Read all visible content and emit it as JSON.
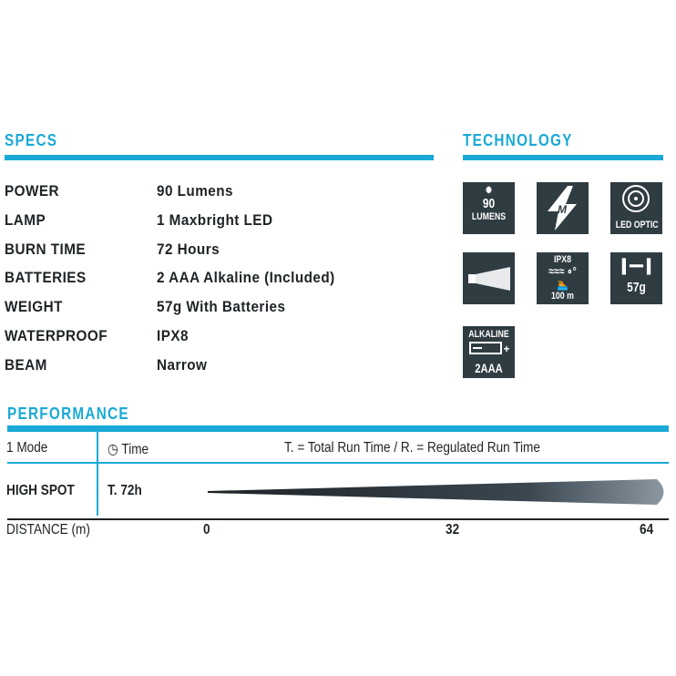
{
  "specs": {
    "heading": "SPECS",
    "rows": [
      {
        "label": "POWER",
        "value": "90 Lumens"
      },
      {
        "label": "LAMP",
        "value": "1 Maxbright LED"
      },
      {
        "label": "BURN TIME",
        "value": "72 Hours"
      },
      {
        "label": "BATTERIES",
        "value": "2 AAA Alkaline (Included)"
      },
      {
        "label": "WEIGHT",
        "value": "57g With Batteries"
      },
      {
        "label": "WATERPROOF",
        "value": "IPX8"
      },
      {
        "label": "BEAM",
        "value": "Narrow"
      }
    ]
  },
  "technology": {
    "heading": "TECHNOLOGY",
    "tiles": [
      {
        "icon": "lumens-icon",
        "top": "90",
        "bottom": "LUMENS"
      },
      {
        "icon": "maxbright-m-icon",
        "top": "M",
        "bottom": ""
      },
      {
        "icon": "led-optic-icon",
        "top": "",
        "bottom": "LED OPTIC"
      },
      {
        "icon": "beam-icon",
        "top": "",
        "bottom": ""
      },
      {
        "icon": "waterproof-diver-icon",
        "top": "IPX8",
        "bottom": "100 m"
      },
      {
        "icon": "weight-icon",
        "top": "",
        "bottom": "57g"
      },
      {
        "icon": "battery-icon",
        "top": "ALKALINE",
        "bottom": "2AAA"
      }
    ]
  },
  "performance": {
    "heading": "PERFORMANCE",
    "mode": "1 Mode",
    "time_header": "Time",
    "legend": "T. = Total Run Time / R. = Regulated Run Time",
    "rows": [
      {
        "mode": "HIGH SPOT",
        "time": "T. 72h",
        "distance_m": 64
      }
    ],
    "distance_label": "DISTANCE (m)",
    "ticks": [
      "0",
      "32",
      "64"
    ]
  },
  "colors": {
    "accent": "#1aa9d6",
    "tile": "#2f3c41"
  }
}
